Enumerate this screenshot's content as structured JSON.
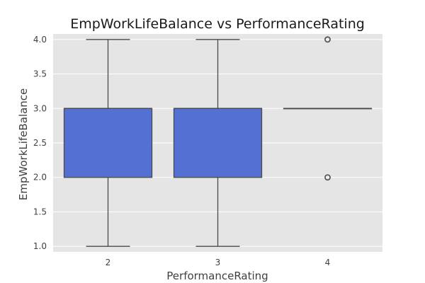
{
  "chart_data": {
    "type": "box",
    "title": "EmpWorkLifeBalance vs PerformanceRating",
    "xlabel": "PerformanceRating",
    "ylabel": "EmpWorkLifeBalance",
    "categories": [
      "2",
      "3",
      "4"
    ],
    "ylim": [
      0.92,
      4.08
    ],
    "yticks": [
      "1.0",
      "1.5",
      "2.0",
      "2.5",
      "3.0",
      "3.5",
      "4.0"
    ],
    "grid": true,
    "box_color": "#5470d2",
    "box_edge_color": "#4a4a4a",
    "background_color": "#e5e5e5",
    "boxes": [
      {
        "category": "2",
        "whisker_low": 1.0,
        "q1": 2.0,
        "median": 3.0,
        "q3": 3.0,
        "whisker_high": 4.0,
        "outliers": []
      },
      {
        "category": "3",
        "whisker_low": 1.0,
        "q1": 2.0,
        "median": 3.0,
        "q3": 3.0,
        "whisker_high": 4.0,
        "outliers": []
      },
      {
        "category": "4",
        "whisker_low": 3.0,
        "q1": 3.0,
        "median": 3.0,
        "q3": 3.0,
        "whisker_high": 3.0,
        "outliers": [
          2.0,
          4.0
        ]
      }
    ]
  }
}
